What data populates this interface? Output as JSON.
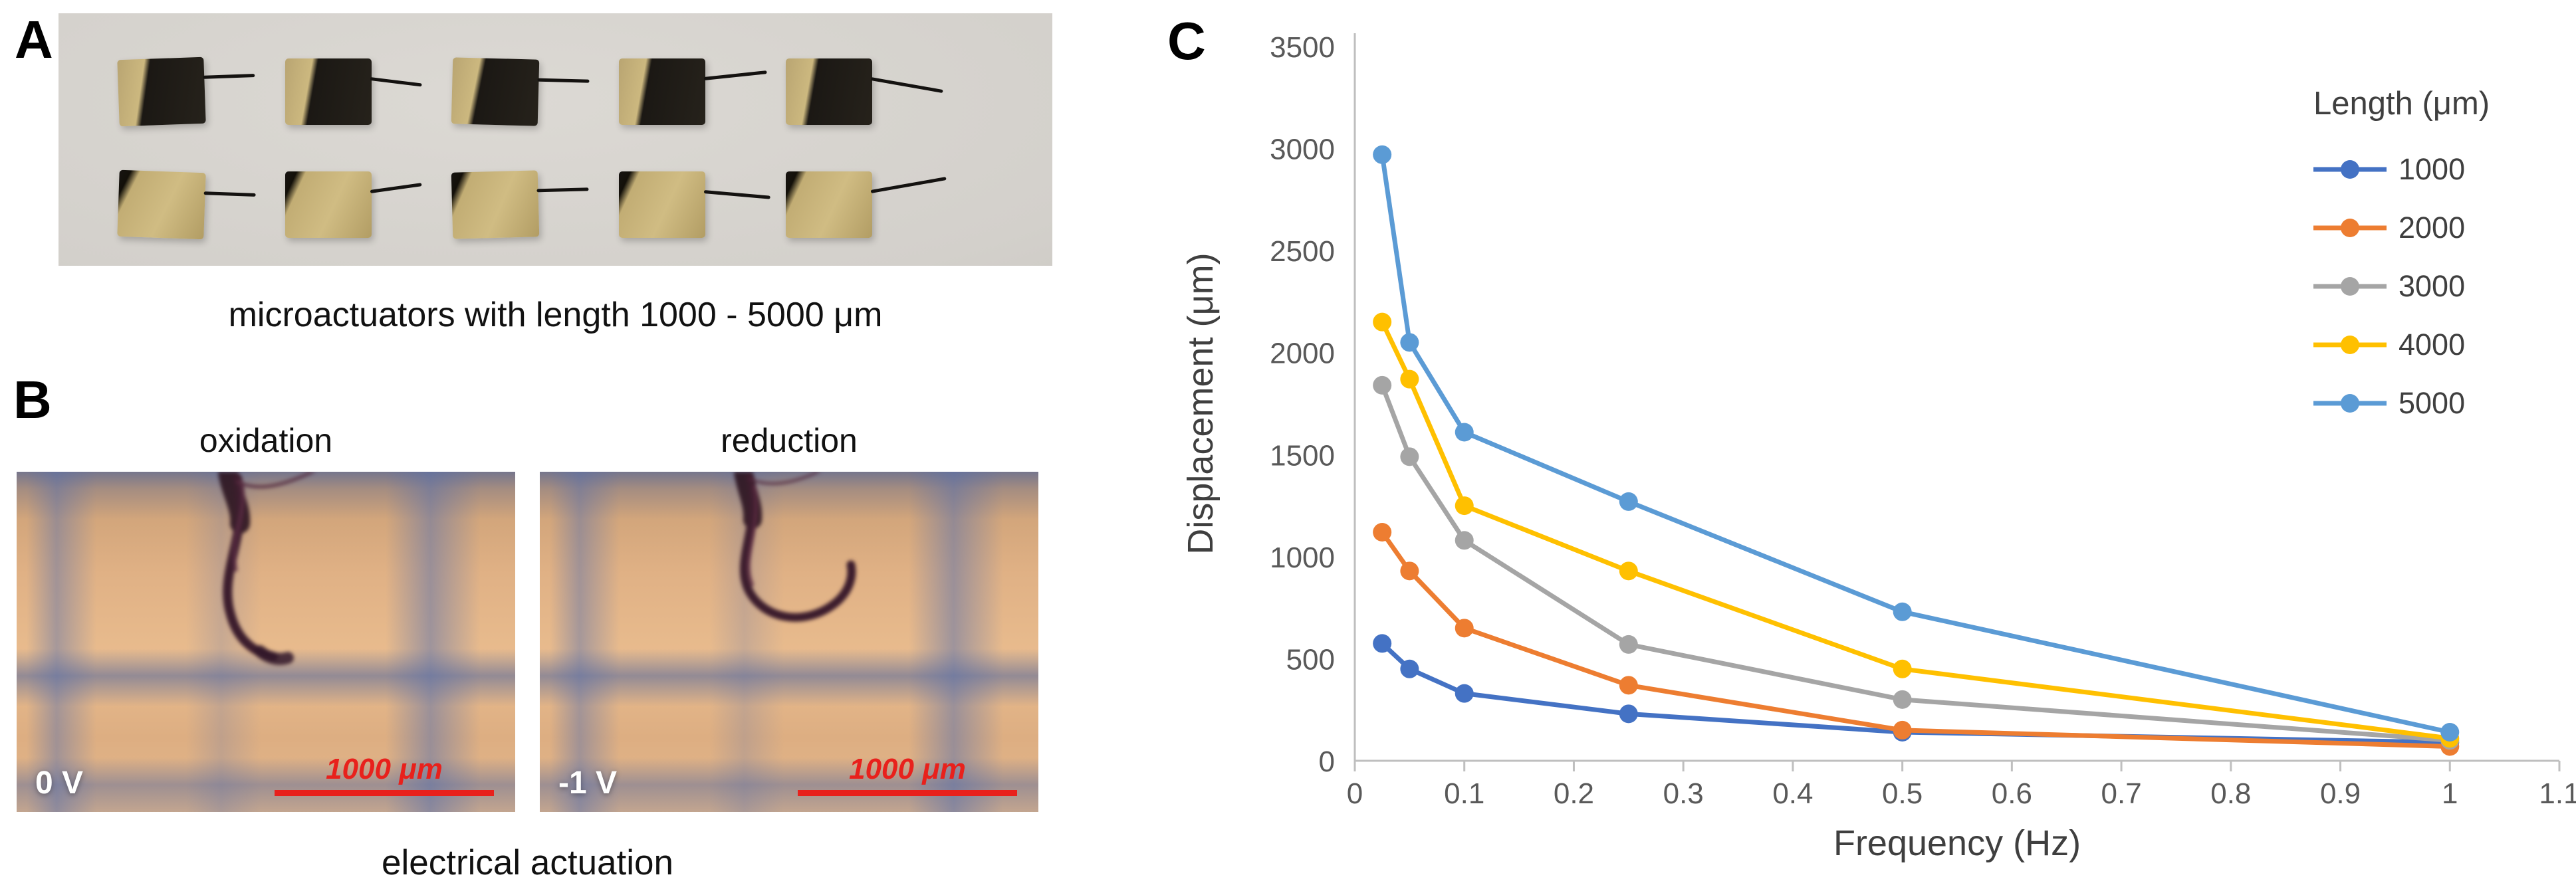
{
  "figure": {
    "panel_a": {
      "label": "A",
      "caption": "microactuators with length 1000 - 5000 μm",
      "actuator_rows": 2,
      "actuator_cols": 5
    },
    "panel_b": {
      "label": "B",
      "left_title": "oxidation",
      "right_title": "reduction",
      "left_voltage": "0 V",
      "right_voltage": "-1 V",
      "scale_bar_label": "1000 μm",
      "scale_bar_color": "#e8211c",
      "caption": "electrical actuation"
    },
    "panel_c": {
      "label": "C"
    }
  },
  "chart_data": {
    "type": "line",
    "title": "",
    "xlabel": "Frequency (Hz)",
    "ylabel": "Displacement (μm)",
    "xlim": [
      0,
      1.1
    ],
    "ylim": [
      0,
      3500
    ],
    "grid": false,
    "legend_title": "Length (μm)",
    "legend_position": "top-right",
    "xticks": [
      "0",
      "0.1",
      "0.2",
      "0.3",
      "0.4",
      "0.5",
      "0.6",
      "0.7",
      "0.8",
      "0.9",
      "1",
      "1.1"
    ],
    "yticks": [
      "0",
      "500",
      "1000",
      "1500",
      "2000",
      "2500",
      "3000",
      "3500"
    ],
    "x": [
      0.025,
      0.05,
      0.1,
      0.25,
      0.5,
      1
    ],
    "series": [
      {
        "name": "1000",
        "color": "#4472C4",
        "values": [
          575,
          450,
          330,
          230,
          140,
          90
        ]
      },
      {
        "name": "2000",
        "color": "#ED7D31",
        "values": [
          1120,
          930,
          650,
          370,
          150,
          70
        ]
      },
      {
        "name": "3000",
        "color": "#A5A5A5",
        "values": [
          1840,
          1490,
          1080,
          570,
          300,
          100
        ]
      },
      {
        "name": "4000",
        "color": "#FFC000",
        "values": [
          2150,
          1870,
          1250,
          930,
          450,
          110
        ]
      },
      {
        "name": "5000",
        "color": "#5B9BD5",
        "values": [
          2970,
          2050,
          1610,
          1270,
          730,
          140
        ]
      }
    ]
  }
}
